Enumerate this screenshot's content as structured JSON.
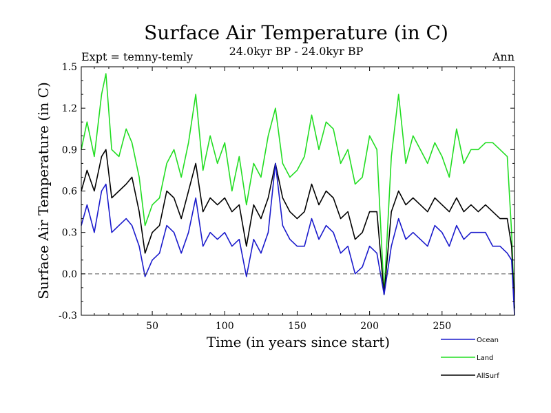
{
  "chart_data": {
    "type": "line",
    "title": "Surface Air Temperature (in C)",
    "subtitle": "24.0kyr BP - 24.0kyr BP",
    "left_annotation": "Expt = temny-temly",
    "right_annotation": "Ann",
    "xlabel": "Time (in years since start)",
    "ylabel": "Surface Air Temperature (in C)",
    "xlim": [
      1,
      300
    ],
    "ylim": [
      -0.3,
      1.5
    ],
    "x_ticks": [
      50,
      100,
      150,
      200,
      250
    ],
    "x_tick_labels": [
      "50",
      "100",
      "150",
      "200",
      "250"
    ],
    "y_ticks": [
      -0.3,
      0.0,
      0.3,
      0.6,
      0.9,
      1.2,
      1.5
    ],
    "y_tick_labels": [
      "-0.3",
      "0.0",
      "0.3",
      "0.6",
      "0.9",
      "1.2",
      "1.5"
    ],
    "reference_line": {
      "y": 0.0,
      "style": "dashed"
    },
    "legend_position": "bottom-right, outside plot",
    "series": [
      {
        "name": "Land",
        "color": "#22dd22",
        "x": [
          1,
          5,
          10,
          15,
          18,
          22,
          27,
          32,
          36,
          41,
          45,
          50,
          55,
          60,
          65,
          70,
          75,
          80,
          85,
          90,
          95,
          100,
          105,
          110,
          115,
          120,
          125,
          130,
          135,
          140,
          145,
          150,
          155,
          160,
          165,
          170,
          175,
          180,
          185,
          190,
          195,
          200,
          205,
          210,
          215,
          220,
          225,
          230,
          235,
          240,
          245,
          250,
          255,
          260,
          265,
          270,
          275,
          280,
          285,
          290,
          295,
          298,
          300
        ],
        "values": [
          0.9,
          1.1,
          0.85,
          1.3,
          1.45,
          0.9,
          0.85,
          1.05,
          0.95,
          0.7,
          0.35,
          0.5,
          0.55,
          0.8,
          0.9,
          0.7,
          0.95,
          1.3,
          0.75,
          1.0,
          0.8,
          0.95,
          0.6,
          0.85,
          0.5,
          0.8,
          0.7,
          1.0,
          1.2,
          0.8,
          0.7,
          0.75,
          0.85,
          1.15,
          0.9,
          1.1,
          1.05,
          0.8,
          0.9,
          0.65,
          0.7,
          1.0,
          0.9,
          -0.15,
          0.85,
          1.3,
          0.8,
          1.0,
          0.9,
          0.8,
          0.95,
          0.85,
          0.7,
          1.05,
          0.8,
          0.9,
          0.9,
          0.95,
          0.95,
          0.9,
          0.85,
          0.3,
          -0.25
        ]
      },
      {
        "name": "AllSurf",
        "color": "#000000",
        "x": [
          1,
          5,
          10,
          15,
          18,
          22,
          27,
          32,
          36,
          41,
          45,
          50,
          55,
          60,
          65,
          70,
          75,
          80,
          85,
          90,
          95,
          100,
          105,
          110,
          115,
          120,
          125,
          130,
          135,
          140,
          145,
          150,
          155,
          160,
          165,
          170,
          175,
          180,
          185,
          190,
          195,
          200,
          205,
          210,
          215,
          220,
          225,
          230,
          235,
          240,
          245,
          250,
          255,
          260,
          265,
          270,
          275,
          280,
          285,
          290,
          295,
          298,
          300
        ],
        "values": [
          0.6,
          0.75,
          0.6,
          0.85,
          0.9,
          0.55,
          0.6,
          0.65,
          0.7,
          0.45,
          0.15,
          0.3,
          0.35,
          0.6,
          0.55,
          0.4,
          0.6,
          0.8,
          0.45,
          0.55,
          0.5,
          0.55,
          0.45,
          0.5,
          0.2,
          0.5,
          0.4,
          0.55,
          0.8,
          0.55,
          0.45,
          0.4,
          0.45,
          0.65,
          0.5,
          0.6,
          0.55,
          0.4,
          0.45,
          0.25,
          0.3,
          0.45,
          0.45,
          -0.15,
          0.45,
          0.6,
          0.5,
          0.55,
          0.5,
          0.45,
          0.55,
          0.5,
          0.45,
          0.55,
          0.45,
          0.5,
          0.45,
          0.5,
          0.45,
          0.4,
          0.4,
          0.2,
          -0.25
        ]
      },
      {
        "name": "Ocean",
        "color": "#1a1acc",
        "x": [
          1,
          5,
          10,
          15,
          18,
          22,
          27,
          32,
          36,
          41,
          45,
          50,
          55,
          60,
          65,
          70,
          75,
          80,
          85,
          90,
          95,
          100,
          105,
          110,
          115,
          120,
          125,
          130,
          135,
          140,
          145,
          150,
          155,
          160,
          165,
          170,
          175,
          180,
          185,
          190,
          195,
          200,
          205,
          210,
          215,
          220,
          225,
          230,
          235,
          240,
          245,
          250,
          255,
          260,
          265,
          270,
          275,
          280,
          285,
          290,
          295,
          298,
          300
        ],
        "values": [
          0.35,
          0.5,
          0.3,
          0.6,
          0.65,
          0.3,
          0.35,
          0.4,
          0.35,
          0.2,
          -0.02,
          0.1,
          0.15,
          0.35,
          0.3,
          0.15,
          0.3,
          0.55,
          0.2,
          0.3,
          0.25,
          0.3,
          0.2,
          0.25,
          -0.02,
          0.25,
          0.15,
          0.3,
          0.8,
          0.35,
          0.25,
          0.2,
          0.2,
          0.4,
          0.25,
          0.35,
          0.3,
          0.15,
          0.2,
          0.0,
          0.05,
          0.2,
          0.15,
          -0.15,
          0.2,
          0.4,
          0.25,
          0.3,
          0.25,
          0.2,
          0.35,
          0.3,
          0.2,
          0.35,
          0.25,
          0.3,
          0.3,
          0.3,
          0.2,
          0.2,
          0.15,
          0.1,
          -0.3
        ]
      }
    ],
    "legend": [
      {
        "name": "Ocean",
        "color": "#1a1acc"
      },
      {
        "name": "Land",
        "color": "#22dd22"
      },
      {
        "name": "AllSurf",
        "color": "#000000"
      }
    ]
  }
}
